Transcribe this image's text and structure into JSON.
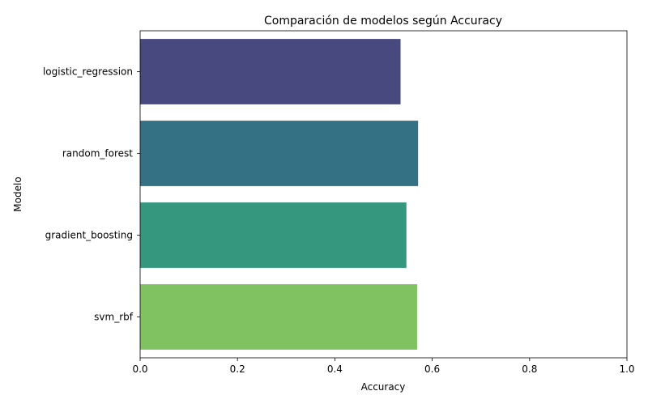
{
  "chart_data": {
    "type": "bar",
    "orientation": "horizontal",
    "title": "Comparación de modelos según Accuracy",
    "xlabel": "Accuracy",
    "ylabel": "Modelo",
    "categories": [
      "logistic_regression",
      "random_forest",
      "gradient_boosting",
      "svm_rbf"
    ],
    "values": [
      0.535,
      0.571,
      0.547,
      0.569
    ],
    "colors": [
      "#48497F",
      "#357185",
      "#35977D",
      "#80C262"
    ],
    "xlim": [
      0,
      1
    ],
    "xticks": [
      0.0,
      0.2,
      0.4,
      0.6,
      0.8,
      1.0
    ],
    "xtick_labels": [
      "0.0",
      "0.2",
      "0.4",
      "0.6",
      "0.8",
      "1.0"
    ],
    "grid": false,
    "legend": "none"
  }
}
